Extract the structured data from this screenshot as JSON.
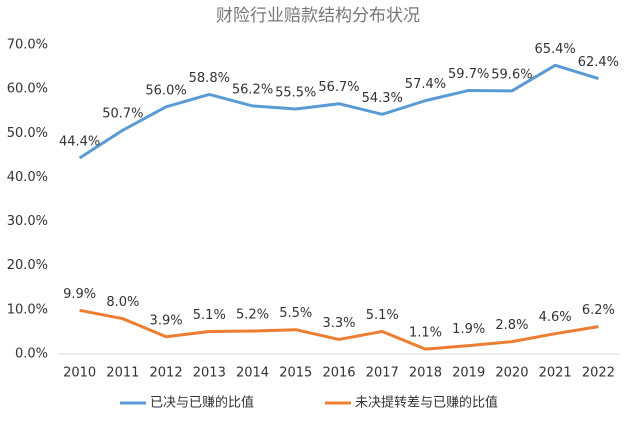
{
  "chart_data": {
    "type": "line",
    "title": "财险行业赔款结构分布状况",
    "categories": [
      "2010",
      "2011",
      "2012",
      "2013",
      "2014",
      "2015",
      "2016",
      "2017",
      "2018",
      "2019",
      "2020",
      "2021",
      "2022"
    ],
    "series": [
      {
        "name": "已决与已赚的比值",
        "color": "#5b9bd5",
        "values": [
          44.4,
          50.7,
          56.0,
          58.8,
          56.2,
          55.5,
          56.7,
          54.3,
          57.4,
          59.7,
          59.6,
          65.4,
          62.4
        ],
        "value_labels": [
          "44.4%",
          "50.7%",
          "56.0%",
          "58.8%",
          "56.2%",
          "55.5%",
          "56.7%",
          "54.3%",
          "57.4%",
          "59.7%",
          "59.6%",
          "65.4%",
          "62.4%"
        ]
      },
      {
        "name": "未决提转差与已赚的比值",
        "color": "#ed7d31",
        "values": [
          9.9,
          8.0,
          3.9,
          5.1,
          5.2,
          5.5,
          3.3,
          5.1,
          1.1,
          1.9,
          2.8,
          4.6,
          6.2
        ],
        "value_labels": [
          "9.9%",
          "8.0%",
          "3.9%",
          "5.1%",
          "5.2%",
          "5.5%",
          "3.3%",
          "5.1%",
          "1.1%",
          "1.9%",
          "2.8%",
          "4.6%",
          "6.2%"
        ]
      }
    ],
    "ylim": [
      0,
      70
    ],
    "yticks": [
      {
        "value": 0,
        "label": "0.0%"
      },
      {
        "value": 10,
        "label": "10.0%"
      },
      {
        "value": 20,
        "label": "20.0%"
      },
      {
        "value": 30,
        "label": "30.0%"
      },
      {
        "value": 40,
        "label": "40.0%"
      },
      {
        "value": 50,
        "label": "50.0%"
      },
      {
        "value": 60,
        "label": "60.0%"
      },
      {
        "value": 70,
        "label": "70.0%"
      }
    ],
    "grid": false,
    "legend": "bottom"
  }
}
